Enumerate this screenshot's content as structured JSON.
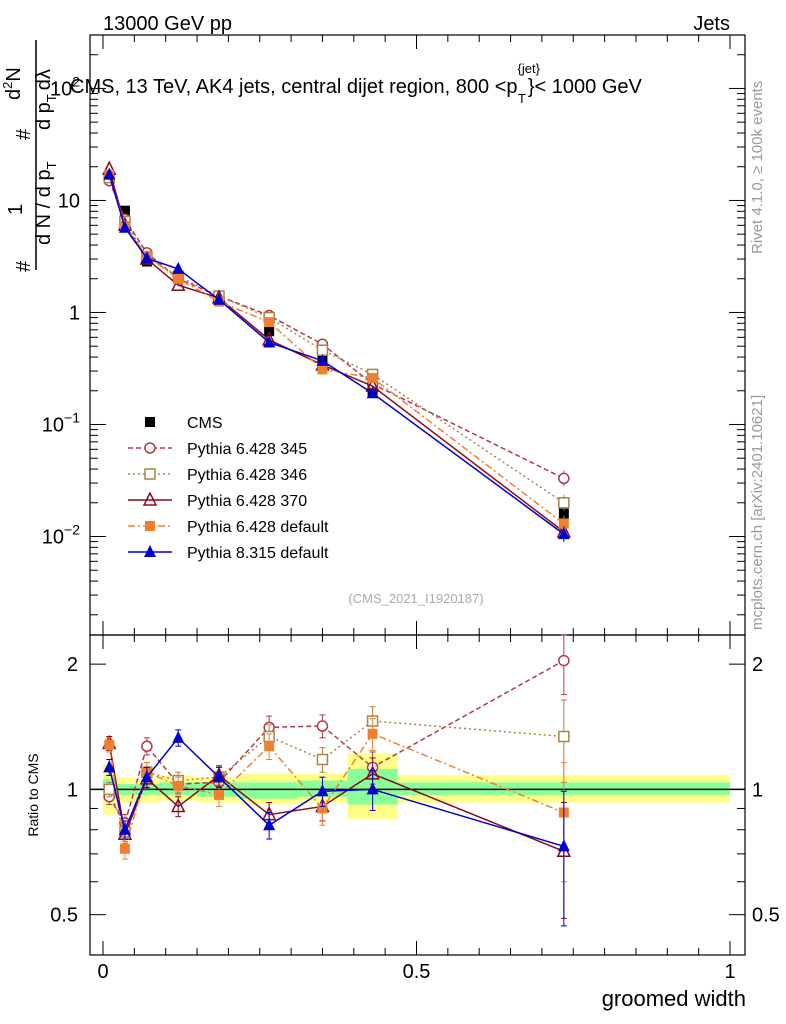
{
  "header": {
    "left": "13000 GeV pp",
    "right": "Jets"
  },
  "chart_data": {
    "type": "line",
    "title": "CMS, 13 TeV, AK4 jets, central dijet region, 800 <p",
    "title_sup": "{jet}",
    "title_sub": "T",
    "title_end": "}< 1000 GeV",
    "ylabel_main": {
      "hash": "#",
      "dN": "d N / d p",
      "T": "T",
      "num1": "1",
      "hash2": "#",
      "d2N": "d",
      "d2N_sup": "2",
      "d2N_N": "N",
      "dpt": "d p",
      "dlambda": "dλ"
    },
    "ylabel_ratio": "Ratio to CMS",
    "xlabel": "groomed width",
    "x_ticks": [
      "0",
      "0.5",
      "1"
    ],
    "y_main_ticks": [
      {
        "base": "10",
        "exp": "−2",
        "value": 0.01
      },
      {
        "base": "10",
        "exp": "−1",
        "value": 0.1
      },
      {
        "base": "1",
        "exp": "",
        "value": 1
      },
      {
        "base": "10",
        "exp": "",
        "value": 10
      },
      {
        "base": "10",
        "exp": "2",
        "value": 100
      }
    ],
    "y_ratio_ticks": [
      "0.5",
      "1",
      "2"
    ],
    "xlim": [
      0,
      1
    ],
    "ylim_main": [
      0.00132,
      300
    ],
    "ylim_ratio": [
      0.4,
      2.35
    ],
    "side_text_top": "Rivet 4.1.0, ≥ 100k events",
    "side_text_bottom": "mcplots.cern.ch [arXiv:2401.10621]",
    "watermark": "(CMS_2021_I1920187)",
    "bins": [
      [
        0.0,
        0.02
      ],
      [
        0.02,
        0.05
      ],
      [
        0.05,
        0.09
      ],
      [
        0.09,
        0.15
      ],
      [
        0.15,
        0.22
      ],
      [
        0.22,
        0.31
      ],
      [
        0.31,
        0.39
      ],
      [
        0.39,
        0.47
      ],
      [
        0.47,
        1.0
      ]
    ],
    "x": [
      0.01,
      0.035,
      0.07,
      0.12,
      0.185,
      0.265,
      0.35,
      0.43,
      0.735
    ],
    "band_inner": [
      [
        0.95,
        1.06
      ],
      [
        0.97,
        1.03
      ],
      [
        0.97,
        1.03
      ],
      [
        0.97,
        1.04
      ],
      [
        0.96,
        1.04
      ],
      [
        0.95,
        1.04
      ],
      [
        0.96,
        1.05
      ],
      [
        0.92,
        1.12
      ],
      [
        0.97,
        1.04
      ]
    ],
    "band_outer": [
      [
        0.87,
        1.15
      ],
      [
        0.93,
        1.07
      ],
      [
        0.93,
        1.06
      ],
      [
        0.94,
        1.08
      ],
      [
        0.93,
        1.07
      ],
      [
        0.92,
        1.09
      ],
      [
        0.93,
        1.09
      ],
      [
        0.85,
        1.22
      ],
      [
        0.93,
        1.08
      ]
    ],
    "series": [
      {
        "name": "CMS",
        "values": [
          16.0,
          8.1,
          2.85,
          2.05,
          1.35,
          0.68,
          0.39,
          0.2,
          0.016
        ],
        "ratio": [
          1,
          1,
          1,
          1,
          1,
          1,
          1,
          1,
          1
        ],
        "ratio_err": [
          0,
          0,
          0,
          0,
          0,
          0,
          0,
          0,
          0
        ],
        "color": "#000000",
        "marker": "square-filled",
        "dash": "none"
      },
      {
        "name": "Pythia 6.428 345",
        "values": [
          15.0,
          6.8,
          3.4,
          2.0,
          1.4,
          0.94,
          0.52,
          0.23,
          0.033
        ],
        "ratio": [
          0.96,
          0.83,
          1.27,
          1.03,
          1.04,
          1.41,
          1.42,
          1.13,
          2.04
        ],
        "ratio_err": [
          0.04,
          0.04,
          0.06,
          0.05,
          0.06,
          0.09,
          0.09,
          0.1,
          0.35
        ],
        "color": "#b03a48",
        "marker": "circle-open",
        "dash": "5,3"
      },
      {
        "name": "Pythia 6.428 346",
        "values": [
          16.0,
          6.5,
          3.1,
          2.1,
          1.4,
          0.9,
          0.46,
          0.28,
          0.02
        ],
        "ratio": [
          1.0,
          0.79,
          1.1,
          1.05,
          1.07,
          1.34,
          1.18,
          1.46,
          1.34
        ],
        "ratio_err": [
          0.04,
          0.04,
          0.06,
          0.05,
          0.06,
          0.09,
          0.08,
          0.12,
          0.3
        ],
        "color": "#a88448",
        "marker": "square-open",
        "dash": "2,3"
      },
      {
        "name": "Pythia 6.428 370",
        "values": [
          19.0,
          6.0,
          3.0,
          1.75,
          1.35,
          0.57,
          0.34,
          0.22,
          0.011
        ],
        "ratio": [
          1.29,
          0.78,
          1.06,
          0.91,
          1.08,
          0.87,
          0.91,
          1.09,
          0.71
        ],
        "ratio_err": [
          0.05,
          0.04,
          0.06,
          0.05,
          0.06,
          0.06,
          0.07,
          0.1,
          0.22
        ],
        "color": "#8b0a1a",
        "marker": "triangle-open",
        "dash": "none"
      },
      {
        "name": "Pythia 6.428 default",
        "values": [
          17.0,
          5.9,
          3.2,
          2.0,
          1.25,
          0.82,
          0.31,
          0.26,
          0.013
        ],
        "ratio": [
          1.28,
          0.72,
          1.1,
          1.02,
          0.97,
          1.27,
          0.9,
          1.36,
          0.88
        ],
        "ratio_err": [
          0.05,
          0.04,
          0.06,
          0.05,
          0.06,
          0.09,
          0.08,
          0.12,
          0.28
        ],
        "color": "#f08030",
        "marker": "square-filled",
        "dash": "7,3,2,3"
      },
      {
        "name": "Pythia 8.315 default",
        "values": [
          17.0,
          5.7,
          3.05,
          2.45,
          1.3,
          0.54,
          0.37,
          0.19,
          0.0105
        ],
        "ratio": [
          1.13,
          0.8,
          1.07,
          1.33,
          1.07,
          0.82,
          0.99,
          1.0,
          0.73
        ],
        "ratio_err": [
          0.05,
          0.04,
          0.06,
          0.06,
          0.06,
          0.06,
          0.08,
          0.11,
          0.26
        ],
        "color": "#0000d0",
        "marker": "triangle-filled",
        "dash": "none"
      }
    ]
  }
}
